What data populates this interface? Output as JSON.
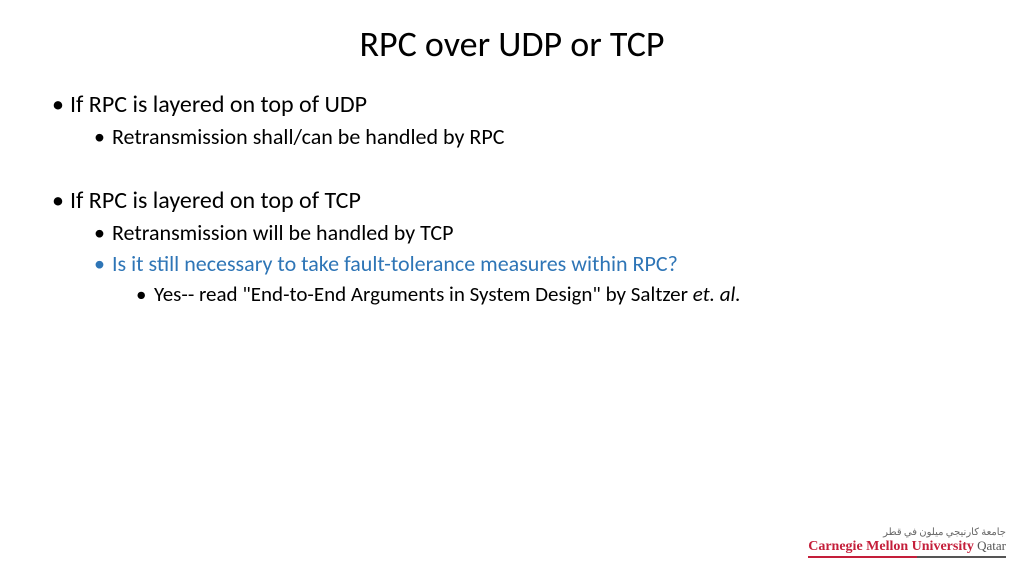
{
  "title": "RPC over UDP or TCP",
  "section1": {
    "heading": "If RPC is layered on top of UDP",
    "sub1": "Retransmission shall/can be handled by RPC"
  },
  "section2": {
    "heading": "If RPC is layered on top of TCP",
    "sub1": "Retransmission will be handled by TCP",
    "sub2": "Is it still necessary to take fault-tolerance measures within RPC?",
    "sub3_pre": "Yes-- read \"End-to-End Arguments in System Design\" by Saltzer ",
    "sub3_italic": "et. al."
  },
  "logo": {
    "arabic": "جامعة كارنيجي ميلون في قطر",
    "main": "Carnegie Mellon University",
    "suffix": " Qatar"
  },
  "colors": {
    "text": "#000000",
    "highlight": "#2e75b6",
    "brand_red": "#c41e3a",
    "brand_gray": "#555555",
    "background": "#ffffff"
  },
  "fontsizes": {
    "title": 36,
    "l1": 24,
    "l2": 22,
    "l3": 21
  }
}
